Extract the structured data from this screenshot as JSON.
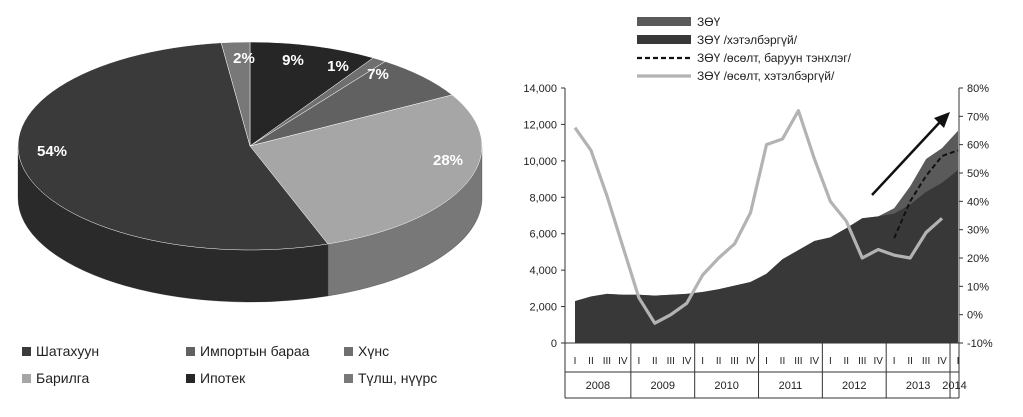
{
  "colors": {
    "dark": "#3a3a3a",
    "mid": "#616161",
    "light": "#a6a6a6",
    "line_gray": "#b3b3b3",
    "black": "#1e1e1e"
  },
  "chart_data": [
    {
      "type": "pie",
      "labels": [
        "Шатахуун",
        "Импортын бараа",
        "Хүнс",
        "Барилга",
        "Ипотек",
        "Түлш, нүүрс"
      ],
      "values": [
        54,
        7,
        1,
        28,
        9,
        2
      ],
      "value_labels": [
        "54%",
        "7%",
        "1%",
        "28%",
        "9%",
        "2%"
      ],
      "colors": [
        "#3a3a3a",
        "#616161",
        "#6f6f6f",
        "#a6a6a6",
        "#262626",
        "#787878"
      ],
      "legend_placement": "bottom",
      "style": "3d"
    },
    {
      "type": "area",
      "legend": [
        {
          "name": "ЗӨҮ",
          "style": "area-light"
        },
        {
          "name": "ЗӨҮ /хэтэлбэргүй/",
          "style": "area-dark"
        },
        {
          "name": "ЗӨҮ /өсөлт, баруун тэнхлэг/",
          "style": "dashed"
        },
        {
          "name": "ЗӨҮ /өсөлт, хэтэлбэргүй/",
          "style": "line-gray"
        }
      ],
      "legend_placement": "top",
      "quarter_labels": [
        "I",
        "II",
        "III",
        "IV",
        "I",
        "II",
        "III",
        "IV",
        "I",
        "II",
        "III",
        "IV",
        "I",
        "II",
        "III",
        "IV",
        "I",
        "II",
        "III",
        "IV",
        "I",
        "II",
        "III",
        "IV",
        "I"
      ],
      "years": [
        "2008",
        "2009",
        "2010",
        "2011",
        "2012",
        "2013",
        "2014"
      ],
      "y_left_ticks": [
        "0",
        "2,000",
        "4,000",
        "6,000",
        "8,000",
        "10,000",
        "12,000",
        "14,000"
      ],
      "y_left_range": [
        0,
        14000
      ],
      "y_right_ticks": [
        "-10%",
        "0%",
        "10%",
        "20%",
        "30%",
        "40%",
        "50%",
        "60%",
        "70%",
        "80%"
      ],
      "y_right_range": [
        -10,
        80
      ],
      "series": [
        {
          "name": "ЗӨҮ",
          "axis": "left",
          "values": [
            2300,
            2550,
            2700,
            2650,
            2650,
            2600,
            2650,
            2700,
            2800,
            2950,
            3150,
            3350,
            3800,
            4600,
            5100,
            5600,
            5800,
            6300,
            6850,
            6950,
            7400,
            8600,
            10100,
            10700,
            11650
          ]
        },
        {
          "name": "ЗӨҮ /хэтэлбэргүй/",
          "axis": "left",
          "values": [
            2300,
            2550,
            2700,
            2650,
            2650,
            2600,
            2650,
            2700,
            2800,
            2950,
            3150,
            3350,
            3800,
            4600,
            5100,
            5600,
            5800,
            6300,
            6850,
            6950,
            7100,
            7600,
            8300,
            8800,
            9500
          ]
        },
        {
          "name": "ЗӨҮ /өсөлт, баруун тэнхлэг/",
          "axis": "right",
          "values": [
            null,
            null,
            null,
            null,
            null,
            null,
            null,
            null,
            null,
            null,
            null,
            null,
            null,
            null,
            null,
            null,
            null,
            null,
            null,
            null,
            27,
            40,
            49,
            56,
            58
          ]
        },
        {
          "name": "ЗӨҮ /өсөлт, хэтэлбэргүй/",
          "axis": "right",
          "values": [
            66,
            58,
            42,
            24,
            6,
            -3,
            0,
            4,
            14,
            20,
            25,
            36,
            60,
            62,
            72,
            55,
            40,
            33,
            20,
            23,
            21,
            20,
            29,
            34,
            null
          ]
        }
      ],
      "annotation": "arrow-up-right"
    }
  ]
}
